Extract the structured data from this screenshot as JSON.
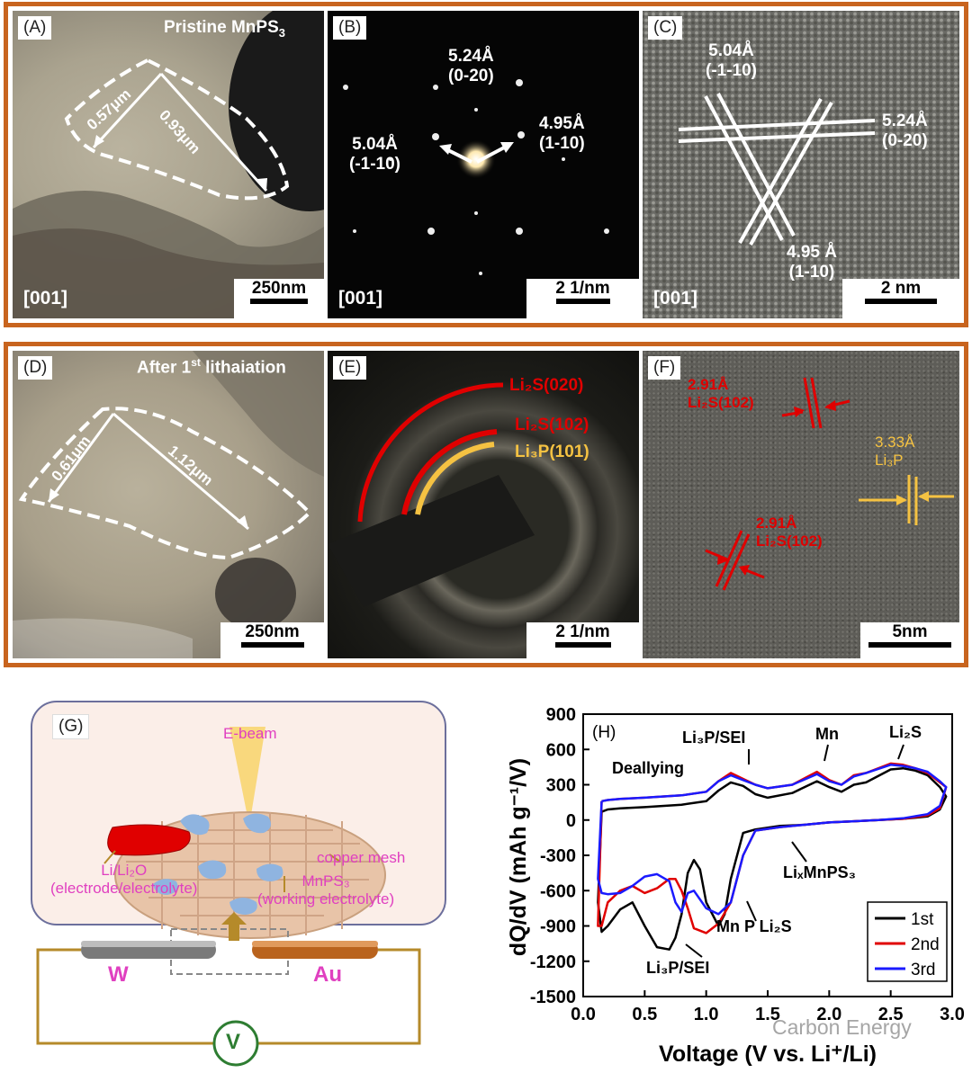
{
  "top_row": {
    "A": {
      "label": "(A)",
      "title": "Pristine MnPS",
      "title_sub": "3",
      "dim1": "0.57μm",
      "dim2": "0.93μm",
      "zone": "[001]",
      "scalebar": "250nm"
    },
    "B": {
      "label": "(B)",
      "s1": "5.24Å",
      "s1b": "(0-20)",
      "s2": "4.95Å",
      "s2b": "(1-10)",
      "s3": "5.04Å",
      "s3b": "(-1-10)",
      "zone": "[001]",
      "scalebar": "2 1/nm"
    },
    "C": {
      "label": "(C)",
      "s1": "5.04Å",
      "s1b": "(-1-10)",
      "s2": "5.24Å",
      "s2b": "(0-20)",
      "s3": "4.95 Å",
      "s3b": "(1-10)",
      "zone": "[001]",
      "scalebar": "2 nm"
    }
  },
  "mid_row": {
    "D": {
      "label": "(D)",
      "title": "After 1",
      "title_sup": "st",
      "title_end": " lithaiation",
      "dim1": "0.61μm",
      "dim2": "1.12μm",
      "scalebar": "250nm"
    },
    "E": {
      "label": "(E)",
      "r1": "Li₂S(020)",
      "r2": "Li₂S(102)",
      "r3": "Li₃P(101)",
      "scalebar": "2 1/nm"
    },
    "F": {
      "label": "(F)",
      "a1": "2.91Å",
      "a1b": "Li₂S(102)",
      "a2": "3.33Å",
      "a2b": "Li₃P",
      "a3": "2.91Å",
      "a3b": "Li₂S(102)",
      "scalebar": "5nm"
    }
  },
  "G": {
    "label": "(G)",
    "ebeam": "E-beam",
    "copper": "copper mesh",
    "li1": "Li/Li₂O",
    "li2": "(electrode/electrolyte)",
    "mn1": "MnPS₃",
    "mn2": "(working electrolyte)",
    "W": "W",
    "Au": "Au",
    "V": "V"
  },
  "H": {
    "label": "(H)",
    "watermark": "Carbon Energy",
    "annotations": {
      "deallying": "Deallying",
      "li3p_top": "Li₃P/SEI",
      "mn": "Mn",
      "li2s": "Li₂S",
      "lixmnps3": "LiₓMnPS₃",
      "mnpli2s": "Mn P Li₂S",
      "li3p_bottom": "Li₃P/SEI"
    }
  },
  "chart_data": {
    "type": "line",
    "xlabel": "Voltage (V vs. Li⁺/Li)",
    "ylabel": "dQ/dV (mAh g⁻¹/V)",
    "xlim": [
      0.0,
      3.0
    ],
    "ylim": [
      -1500,
      900
    ],
    "xticks": [
      "0.0",
      "0.5",
      "1.0",
      "1.5",
      "2.0",
      "2.5",
      "3.0"
    ],
    "yticks": [
      "900",
      "600",
      "300",
      "0",
      "-300",
      "-600",
      "-900",
      "-1200",
      "-1500"
    ],
    "legend_position": "bottom-right",
    "series": [
      {
        "name": "1st",
        "color": "#000000",
        "x": [
          0.15,
          0.2,
          0.3,
          0.5,
          0.8,
          1.0,
          1.1,
          1.2,
          1.3,
          1.4,
          1.5,
          1.7,
          1.9,
          2.0,
          2.1,
          2.2,
          2.3,
          2.5,
          2.6,
          2.7,
          2.8,
          2.9,
          2.95,
          2.9,
          2.8,
          2.6,
          2.4,
          2.2,
          2.0,
          1.8,
          1.6,
          1.4,
          1.3,
          1.2,
          1.15,
          1.1,
          1.0,
          0.95,
          0.9,
          0.85,
          0.8,
          0.75,
          0.7,
          0.6,
          0.5,
          0.4,
          0.3,
          0.2,
          0.15,
          0.12,
          0.15
        ],
        "y": [
          70,
          90,
          100,
          110,
          130,
          160,
          250,
          320,
          290,
          220,
          190,
          230,
          330,
          280,
          240,
          300,
          320,
          430,
          440,
          420,
          380,
          280,
          200,
          90,
          30,
          10,
          0,
          -10,
          -20,
          -40,
          -50,
          -80,
          -110,
          -500,
          -800,
          -900,
          -700,
          -420,
          -340,
          -450,
          -800,
          -1000,
          -1100,
          -1080,
          -900,
          -700,
          -760,
          -900,
          -950,
          -700,
          70
        ]
      },
      {
        "name": "2nd",
        "color": "#e00000",
        "x": [
          0.15,
          0.2,
          0.3,
          0.5,
          0.8,
          1.0,
          1.1,
          1.2,
          1.3,
          1.4,
          1.5,
          1.7,
          1.9,
          2.0,
          2.1,
          2.2,
          2.3,
          2.5,
          2.6,
          2.7,
          2.8,
          2.9,
          2.95,
          2.9,
          2.8,
          2.6,
          2.4,
          2.2,
          2.0,
          1.8,
          1.6,
          1.4,
          1.3,
          1.2,
          1.1,
          1.0,
          0.9,
          0.85,
          0.8,
          0.75,
          0.7,
          0.6,
          0.5,
          0.4,
          0.3,
          0.2,
          0.15,
          0.12,
          0.15
        ],
        "y": [
          160,
          170,
          180,
          190,
          210,
          240,
          330,
          400,
          350,
          300,
          270,
          300,
          410,
          340,
          300,
          380,
          400,
          480,
          470,
          440,
          400,
          320,
          280,
          100,
          40,
          10,
          0,
          -10,
          -20,
          -40,
          -60,
          -90,
          -300,
          -700,
          -880,
          -960,
          -920,
          -750,
          -600,
          -500,
          -500,
          -580,
          -620,
          -560,
          -600,
          -700,
          -900,
          -900,
          160
        ]
      },
      {
        "name": "3rd",
        "color": "#1a1aff",
        "x": [
          0.15,
          0.2,
          0.3,
          0.5,
          0.8,
          1.0,
          1.1,
          1.2,
          1.3,
          1.4,
          1.5,
          1.7,
          1.9,
          2.0,
          2.1,
          2.2,
          2.3,
          2.5,
          2.6,
          2.7,
          2.8,
          2.9,
          2.95,
          2.9,
          2.8,
          2.6,
          2.4,
          2.2,
          2.0,
          1.8,
          1.6,
          1.4,
          1.3,
          1.2,
          1.1,
          1.0,
          0.9,
          0.85,
          0.8,
          0.75,
          0.7,
          0.6,
          0.5,
          0.4,
          0.3,
          0.2,
          0.15,
          0.12,
          0.15
        ],
        "y": [
          160,
          170,
          180,
          190,
          210,
          240,
          330,
          380,
          340,
          300,
          270,
          300,
          390,
          330,
          300,
          370,
          400,
          470,
          460,
          440,
          410,
          330,
          280,
          120,
          50,
          15,
          0,
          -10,
          -20,
          -40,
          -60,
          -90,
          -300,
          -700,
          -800,
          -750,
          -600,
          -620,
          -780,
          -700,
          -520,
          -460,
          -480,
          -560,
          -620,
          -630,
          -620,
          -500,
          160
        ]
      }
    ]
  }
}
